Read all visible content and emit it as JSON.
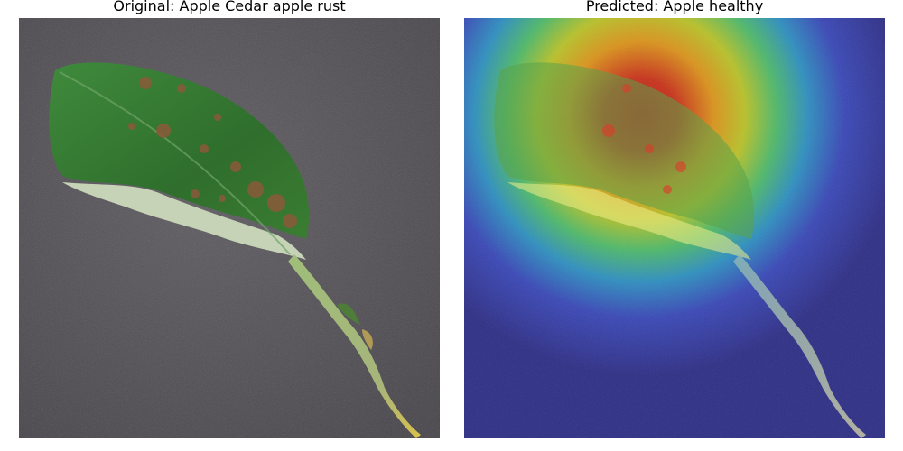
{
  "panels": [
    {
      "title": "Original: Apple Cedar apple rust"
    },
    {
      "title": "Predicted: Apple healthy"
    }
  ]
}
